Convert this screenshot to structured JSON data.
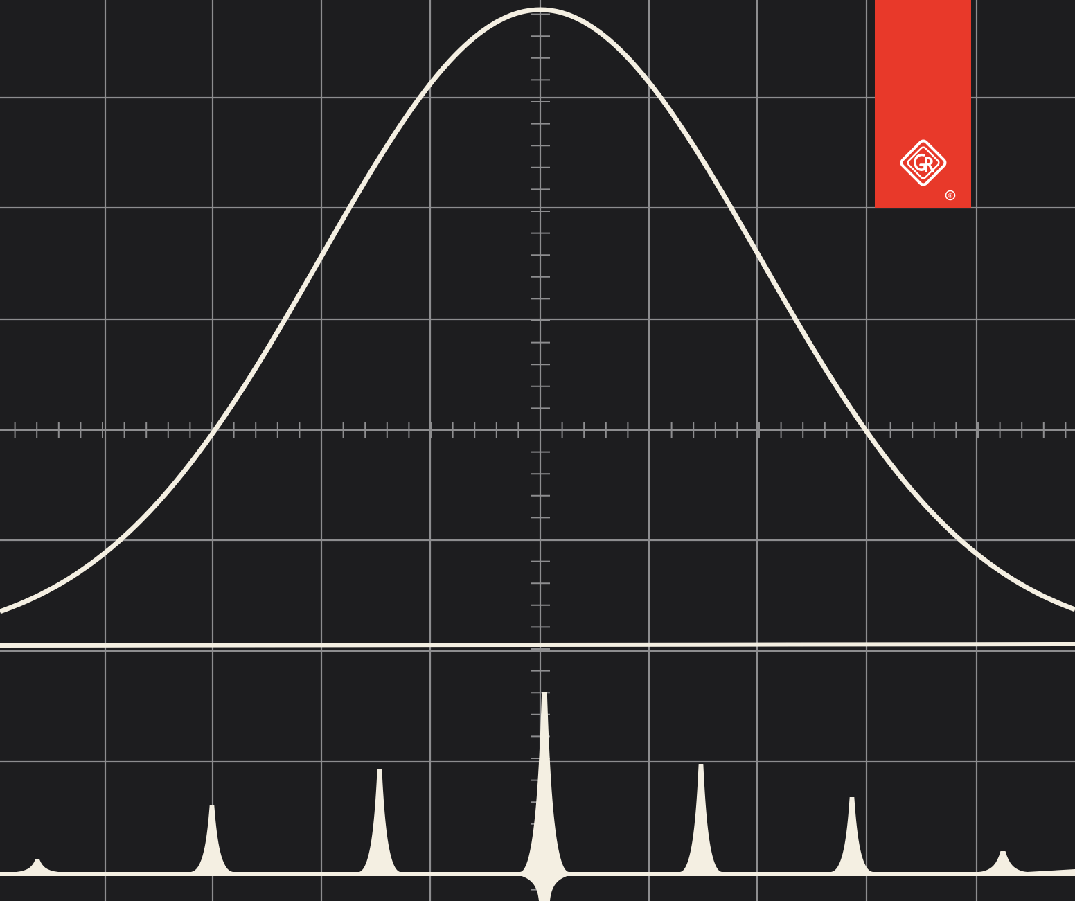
{
  "photo": {
    "subject": "oscilloscope-screen-photograph",
    "background_color": "#1d1d1f",
    "graticule_color": "#8d8d8f",
    "trace_color": "#f4efe2"
  },
  "brand": {
    "logo_text": "GR",
    "registered_mark": "®",
    "tab_color": "#e8392a",
    "mark_color": "#ffffff"
  }
}
